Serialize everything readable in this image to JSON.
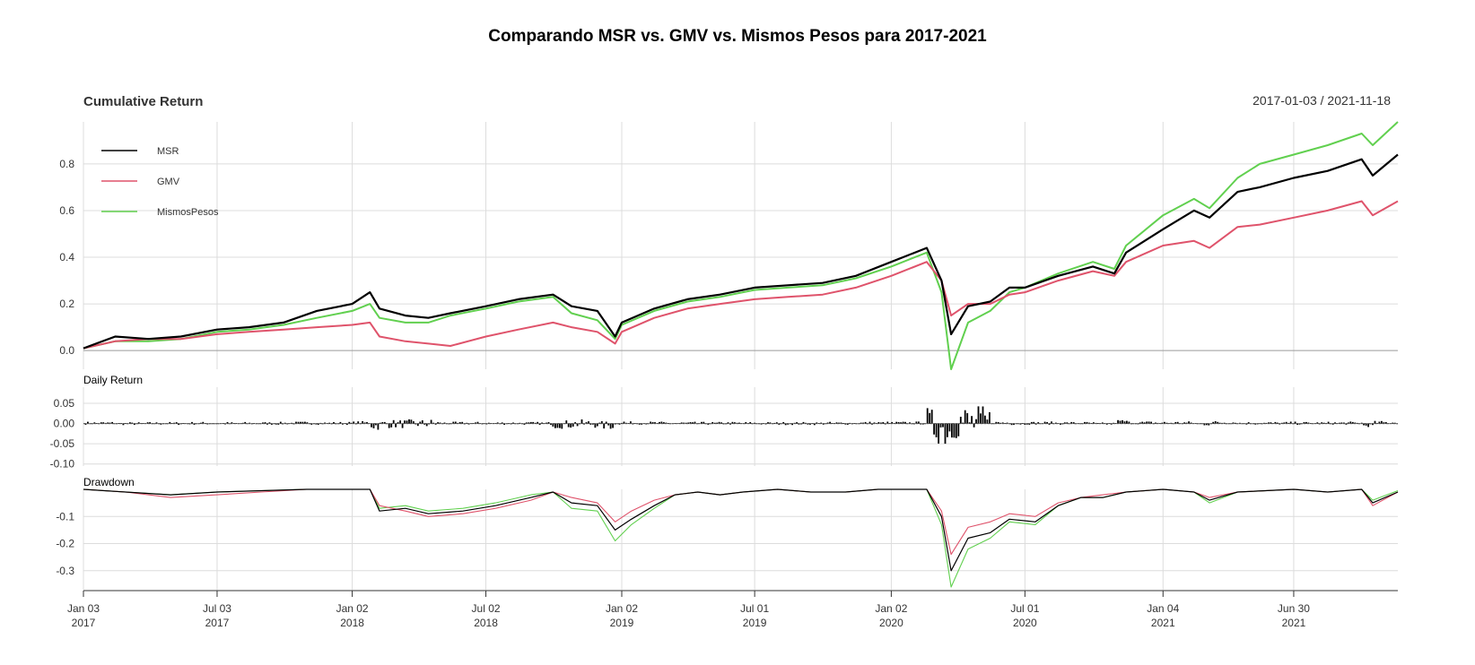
{
  "title": "Comparando MSR vs. GMV vs. Mismos Pesos para 2017-2021",
  "date_range": "2017-01-03 / 2021-11-18",
  "colors": {
    "MSR": "#000000",
    "GMV": "#df536b",
    "MismosPesos": "#61d04f"
  },
  "chart_data": [
    {
      "type": "line",
      "title": "Cumulative Return",
      "legend_position": "top-left",
      "grid": true,
      "ylim": [
        -0.08,
        0.98
      ],
      "y_ticks": [
        "0.0",
        "0.2",
        "0.4",
        "0.6",
        "0.8"
      ],
      "x": [
        "2017-01-03",
        "2017-02-15",
        "2017-04-01",
        "2017-05-15",
        "2017-07-03",
        "2017-08-15",
        "2017-10-01",
        "2017-11-15",
        "2018-01-02",
        "2018-01-26",
        "2018-02-08",
        "2018-03-15",
        "2018-04-15",
        "2018-05-15",
        "2018-07-02",
        "2018-08-15",
        "2018-10-01",
        "2018-10-26",
        "2018-11-30",
        "2018-12-24",
        "2019-01-02",
        "2019-02-15",
        "2019-04-01",
        "2019-05-15",
        "2019-07-01",
        "2019-08-15",
        "2019-10-01",
        "2019-11-15",
        "2020-01-02",
        "2020-02-19",
        "2020-03-10",
        "2020-03-23",
        "2020-04-15",
        "2020-05-15",
        "2020-06-10",
        "2020-07-01",
        "2020-08-15",
        "2020-10-01",
        "2020-10-30",
        "2020-11-15",
        "2021-01-04",
        "2021-02-15",
        "2021-03-08",
        "2021-04-15",
        "2021-05-15",
        "2021-06-30",
        "2021-08-15",
        "2021-09-30",
        "2021-10-15",
        "2021-11-18"
      ],
      "series": [
        {
          "name": "MSR",
          "values": [
            0.01,
            0.06,
            0.05,
            0.06,
            0.09,
            0.1,
            0.12,
            0.17,
            0.2,
            0.25,
            0.18,
            0.15,
            0.14,
            0.16,
            0.19,
            0.22,
            0.24,
            0.19,
            0.17,
            0.06,
            0.12,
            0.18,
            0.22,
            0.24,
            0.27,
            0.28,
            0.29,
            0.32,
            0.38,
            0.44,
            0.3,
            0.07,
            0.19,
            0.21,
            0.27,
            0.27,
            0.32,
            0.36,
            0.33,
            0.42,
            0.52,
            0.6,
            0.57,
            0.68,
            0.7,
            0.74,
            0.77,
            0.82,
            0.75,
            0.84
          ]
        },
        {
          "name": "GMV",
          "values": [
            0.01,
            0.04,
            0.05,
            0.05,
            0.07,
            0.08,
            0.09,
            0.1,
            0.11,
            0.12,
            0.06,
            0.04,
            0.03,
            0.02,
            0.06,
            0.09,
            0.12,
            0.1,
            0.08,
            0.03,
            0.08,
            0.14,
            0.18,
            0.2,
            0.22,
            0.23,
            0.24,
            0.27,
            0.32,
            0.38,
            0.3,
            0.15,
            0.2,
            0.2,
            0.24,
            0.25,
            0.3,
            0.34,
            0.32,
            0.38,
            0.45,
            0.47,
            0.44,
            0.53,
            0.54,
            0.57,
            0.6,
            0.64,
            0.58,
            0.64
          ]
        },
        {
          "name": "MismosPesos",
          "values": [
            0.01,
            0.04,
            0.04,
            0.05,
            0.08,
            0.09,
            0.11,
            0.14,
            0.17,
            0.2,
            0.14,
            0.12,
            0.12,
            0.15,
            0.18,
            0.21,
            0.23,
            0.16,
            0.13,
            0.05,
            0.11,
            0.17,
            0.21,
            0.23,
            0.26,
            0.27,
            0.28,
            0.31,
            0.36,
            0.42,
            0.25,
            -0.08,
            0.12,
            0.17,
            0.25,
            0.27,
            0.33,
            0.38,
            0.35,
            0.45,
            0.58,
            0.65,
            0.61,
            0.74,
            0.8,
            0.84,
            0.88,
            0.93,
            0.88,
            0.98
          ]
        }
      ]
    },
    {
      "type": "bar",
      "title": "Daily Return",
      "series_name": "MSR",
      "ylim": [
        -0.105,
        0.09
      ],
      "y_ticks": [
        "0.05",
        "0.00",
        "-0.05",
        "-0.10"
      ]
    },
    {
      "type": "line",
      "title": "Drawdown",
      "grid": true,
      "ylim": [
        -0.37,
        0.0
      ],
      "y_ticks": [
        "-0.1",
        "-0.2",
        "-0.3"
      ],
      "x": [
        "2017-01-03",
        "2017-03-01",
        "2017-05-01",
        "2017-07-03",
        "2017-09-01",
        "2017-11-01",
        "2018-01-02",
        "2018-01-26",
        "2018-02-08",
        "2018-03-15",
        "2018-04-15",
        "2018-06-01",
        "2018-07-15",
        "2018-09-01",
        "2018-10-01",
        "2018-10-26",
        "2018-11-30",
        "2018-12-24",
        "2019-01-15",
        "2019-02-15",
        "2019-03-15",
        "2019-04-15",
        "2019-05-15",
        "2019-06-15",
        "2019-08-01",
        "2019-09-15",
        "2019-11-01",
        "2019-12-15",
        "2020-01-15",
        "2020-02-19",
        "2020-03-10",
        "2020-03-23",
        "2020-04-15",
        "2020-05-15",
        "2020-06-10",
        "2020-07-15",
        "2020-08-15",
        "2020-09-15",
        "2020-10-15",
        "2020-11-15",
        "2021-01-04",
        "2021-02-15",
        "2021-03-08",
        "2021-04-15",
        "2021-06-30",
        "2021-08-15",
        "2021-09-30",
        "2021-10-15",
        "2021-11-18"
      ],
      "series": [
        {
          "name": "MSR",
          "values": [
            0.0,
            -0.01,
            -0.02,
            -0.01,
            -0.005,
            0.0,
            0.0,
            0.0,
            -0.08,
            -0.07,
            -0.09,
            -0.08,
            -0.06,
            -0.03,
            -0.01,
            -0.05,
            -0.06,
            -0.15,
            -0.11,
            -0.06,
            -0.02,
            -0.01,
            -0.02,
            -0.01,
            0.0,
            -0.01,
            -0.01,
            0.0,
            0.0,
            0.0,
            -0.1,
            -0.3,
            -0.18,
            -0.16,
            -0.11,
            -0.12,
            -0.06,
            -0.03,
            -0.03,
            -0.01,
            0.0,
            -0.01,
            -0.04,
            -0.01,
            0.0,
            -0.01,
            0.0,
            -0.05,
            -0.01
          ]
        },
        {
          "name": "GMV",
          "values": [
            0.0,
            -0.01,
            -0.03,
            -0.02,
            -0.01,
            0.0,
            0.0,
            0.0,
            -0.06,
            -0.08,
            -0.1,
            -0.09,
            -0.07,
            -0.04,
            -0.01,
            -0.03,
            -0.05,
            -0.12,
            -0.08,
            -0.04,
            -0.02,
            -0.01,
            -0.02,
            -0.01,
            0.0,
            -0.01,
            -0.01,
            0.0,
            0.0,
            0.0,
            -0.08,
            -0.24,
            -0.14,
            -0.12,
            -0.09,
            -0.1,
            -0.05,
            -0.03,
            -0.02,
            -0.01,
            0.0,
            -0.01,
            -0.03,
            -0.01,
            0.0,
            -0.01,
            0.0,
            -0.06,
            -0.01
          ]
        },
        {
          "name": "MismosPesos",
          "values": [
            0.0,
            -0.01,
            -0.02,
            -0.01,
            -0.005,
            0.0,
            0.0,
            0.0,
            -0.07,
            -0.06,
            -0.08,
            -0.07,
            -0.05,
            -0.02,
            -0.01,
            -0.07,
            -0.08,
            -0.19,
            -0.13,
            -0.07,
            -0.02,
            -0.01,
            -0.02,
            -0.01,
            0.0,
            -0.01,
            -0.01,
            0.0,
            0.0,
            0.0,
            -0.13,
            -0.36,
            -0.22,
            -0.18,
            -0.12,
            -0.13,
            -0.06,
            -0.03,
            -0.03,
            -0.01,
            0.0,
            -0.01,
            -0.05,
            -0.01,
            0.0,
            -0.01,
            0.0,
            -0.04,
            -0.005
          ]
        }
      ]
    }
  ],
  "x_axis": {
    "ticks": [
      {
        "date": "2017-01-03",
        "label1": "Jan 03",
        "label2": "2017"
      },
      {
        "date": "2017-07-03",
        "label1": "Jul 03",
        "label2": "2017"
      },
      {
        "date": "2018-01-02",
        "label1": "Jan 02",
        "label2": "2018"
      },
      {
        "date": "2018-07-02",
        "label1": "Jul 02",
        "label2": "2018"
      },
      {
        "date": "2019-01-02",
        "label1": "Jan 02",
        "label2": "2019"
      },
      {
        "date": "2019-07-01",
        "label1": "Jul 01",
        "label2": "2019"
      },
      {
        "date": "2020-01-02",
        "label1": "Jan 02",
        "label2": "2020"
      },
      {
        "date": "2020-07-01",
        "label1": "Jul 01",
        "label2": "2020"
      },
      {
        "date": "2021-01-04",
        "label1": "Jan 04",
        "label2": "2021"
      },
      {
        "date": "2021-06-30",
        "label1": "Jun 30",
        "label2": "2021"
      }
    ]
  }
}
